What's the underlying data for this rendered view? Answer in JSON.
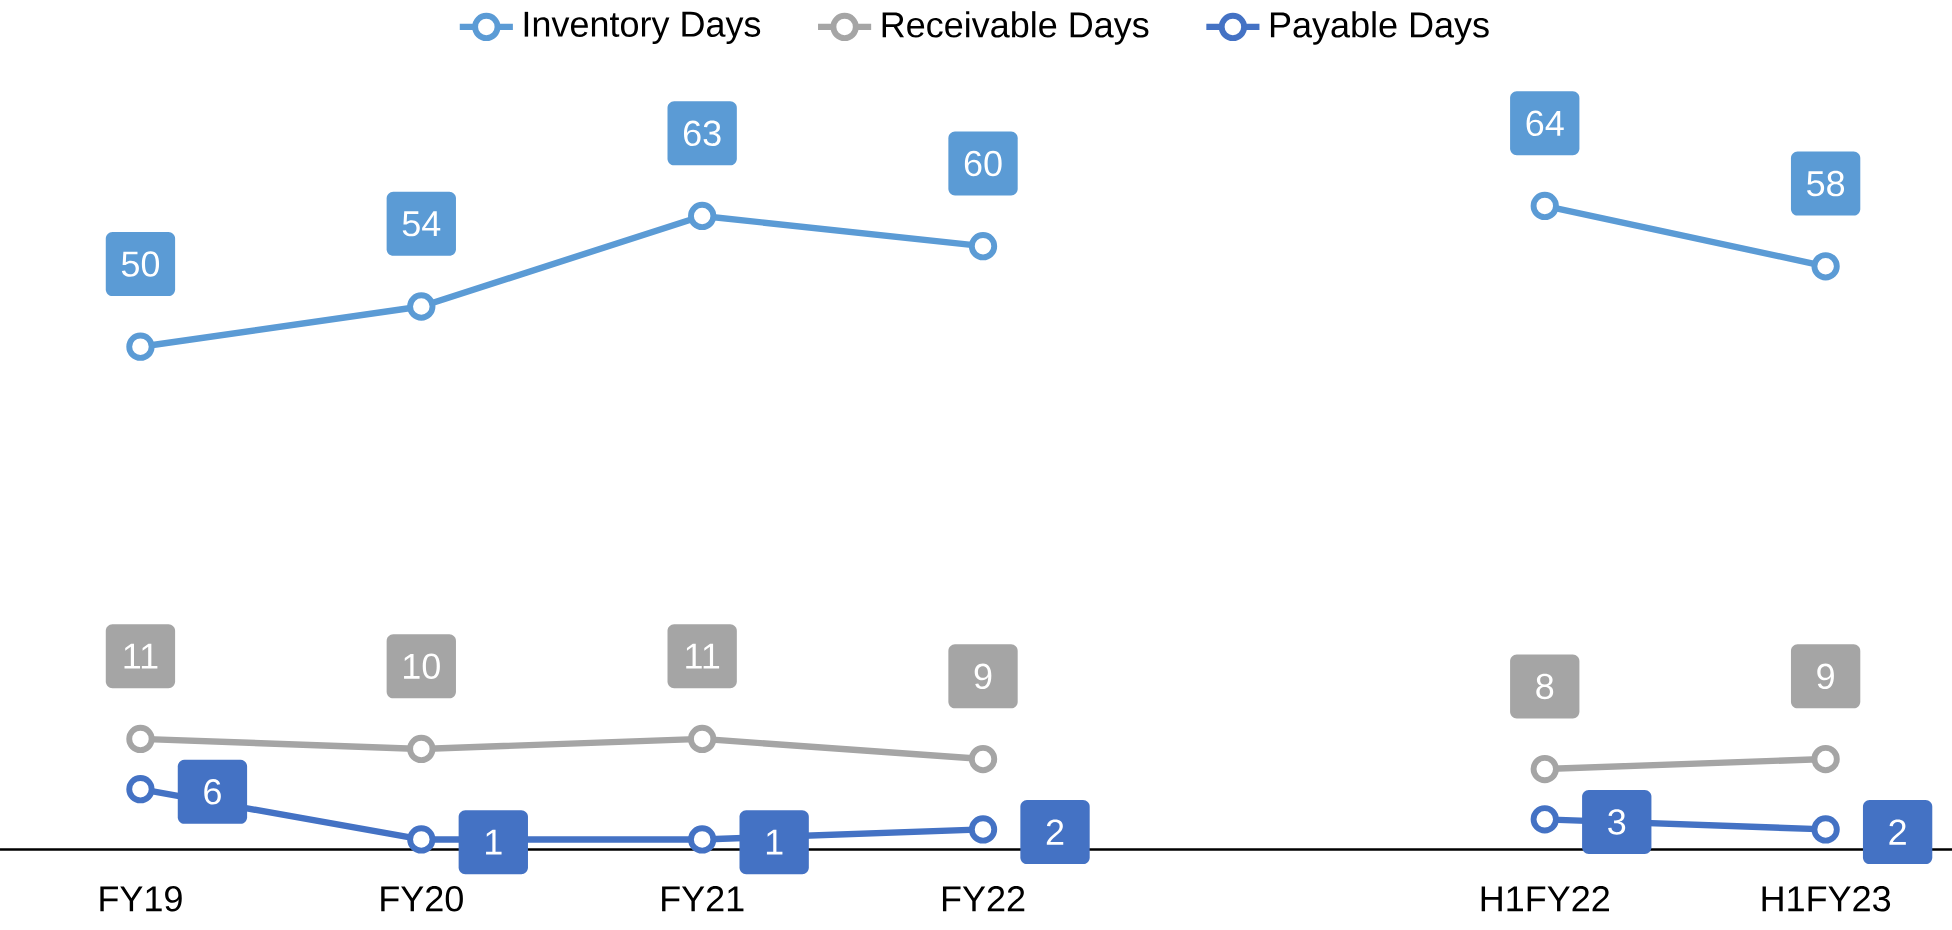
{
  "chart_data": {
    "type": "line",
    "categories": [
      "FY19",
      "FY20",
      "FY21",
      "FY22",
      null,
      "H1FY22",
      "H1FY23"
    ],
    "series": [
      {
        "name": "Inventory Days",
        "color": "#5b9bd5",
        "values": [
          50,
          54,
          63,
          60,
          null,
          64,
          58
        ]
      },
      {
        "name": "Receivable Days",
        "color": "#a5a5a5",
        "values": [
          11,
          10,
          11,
          9,
          null,
          8,
          9
        ]
      },
      {
        "name": "Payable Days",
        "color": "#4472c4",
        "values": [
          6,
          1,
          1,
          2,
          null,
          3,
          2
        ]
      }
    ],
    "data_labels": true,
    "marker": "circle",
    "line_style": "solid",
    "legend": "top",
    "grid": false
  }
}
